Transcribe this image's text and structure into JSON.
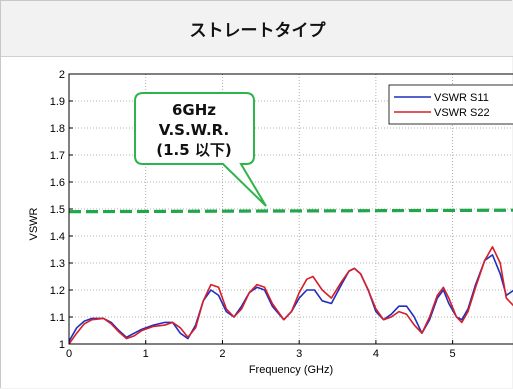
{
  "header": {
    "title": "ストレートタイプ"
  },
  "callout": {
    "lines": [
      "6GHz",
      "V.S.W.R.",
      "(1.5 以下)"
    ]
  },
  "colors": {
    "s11": "#1f2fbf",
    "s22": "#d81e28",
    "limit": "#1fa84a",
    "callout_border": "#2fb34a"
  },
  "chart_data": {
    "type": "line",
    "xlabel": "Frequency (GHz)",
    "ylabel": "VSWR",
    "xlim": [
      0,
      5.8
    ],
    "ylim": [
      1,
      2
    ],
    "x_ticks": [
      0,
      1,
      2,
      3,
      4,
      5
    ],
    "y_ticks": [
      1,
      1.1,
      1.2,
      1.3,
      1.4,
      1.5,
      1.6,
      1.7,
      1.8,
      1.9,
      2
    ],
    "grid": true,
    "legend_position": "top-right",
    "reference_line": {
      "y": 1.49,
      "style": "dashed"
    },
    "series": [
      {
        "name": "VSWR S11",
        "points": [
          [
            0,
            1.01
          ],
          [
            0.1,
            1.06
          ],
          [
            0.2,
            1.085
          ],
          [
            0.3,
            1.095
          ],
          [
            0.45,
            1.095
          ],
          [
            0.55,
            1.08
          ],
          [
            0.65,
            1.05
          ],
          [
            0.75,
            1.025
          ],
          [
            0.85,
            1.04
          ],
          [
            0.95,
            1.055
          ],
          [
            1.1,
            1.07
          ],
          [
            1.25,
            1.08
          ],
          [
            1.35,
            1.08
          ],
          [
            1.45,
            1.04
          ],
          [
            1.55,
            1.02
          ],
          [
            1.65,
            1.07
          ],
          [
            1.75,
            1.16
          ],
          [
            1.85,
            1.2
          ],
          [
            1.95,
            1.18
          ],
          [
            2.05,
            1.12
          ],
          [
            2.15,
            1.1
          ],
          [
            2.25,
            1.14
          ],
          [
            2.35,
            1.19
          ],
          [
            2.45,
            1.21
          ],
          [
            2.55,
            1.2
          ],
          [
            2.65,
            1.14
          ],
          [
            2.8,
            1.09
          ],
          [
            2.9,
            1.12
          ],
          [
            3.0,
            1.17
          ],
          [
            3.1,
            1.2
          ],
          [
            3.2,
            1.2
          ],
          [
            3.3,
            1.16
          ],
          [
            3.42,
            1.15
          ],
          [
            3.55,
            1.22
          ],
          [
            3.65,
            1.27
          ],
          [
            3.72,
            1.28
          ],
          [
            3.8,
            1.26
          ],
          [
            3.9,
            1.2
          ],
          [
            4.0,
            1.12
          ],
          [
            4.1,
            1.09
          ],
          [
            4.2,
            1.11
          ],
          [
            4.3,
            1.14
          ],
          [
            4.4,
            1.14
          ],
          [
            4.5,
            1.1
          ],
          [
            4.6,
            1.04
          ],
          [
            4.7,
            1.09
          ],
          [
            4.8,
            1.17
          ],
          [
            4.88,
            1.2
          ],
          [
            4.95,
            1.15
          ],
          [
            5.05,
            1.1
          ],
          [
            5.12,
            1.09
          ],
          [
            5.2,
            1.13
          ],
          [
            5.3,
            1.22
          ],
          [
            5.42,
            1.31
          ],
          [
            5.52,
            1.33
          ],
          [
            5.62,
            1.26
          ],
          [
            5.7,
            1.18
          ],
          [
            5.8,
            1.2
          ]
        ]
      },
      {
        "name": "VSWR S22",
        "points": [
          [
            0,
            1.0
          ],
          [
            0.1,
            1.04
          ],
          [
            0.2,
            1.075
          ],
          [
            0.3,
            1.09
          ],
          [
            0.45,
            1.095
          ],
          [
            0.55,
            1.075
          ],
          [
            0.65,
            1.045
          ],
          [
            0.75,
            1.02
          ],
          [
            0.85,
            1.03
          ],
          [
            0.95,
            1.05
          ],
          [
            1.1,
            1.065
          ],
          [
            1.25,
            1.07
          ],
          [
            1.35,
            1.08
          ],
          [
            1.45,
            1.06
          ],
          [
            1.55,
            1.025
          ],
          [
            1.65,
            1.06
          ],
          [
            1.75,
            1.16
          ],
          [
            1.85,
            1.22
          ],
          [
            1.95,
            1.21
          ],
          [
            2.05,
            1.13
          ],
          [
            2.15,
            1.1
          ],
          [
            2.25,
            1.13
          ],
          [
            2.35,
            1.19
          ],
          [
            2.45,
            1.22
          ],
          [
            2.55,
            1.21
          ],
          [
            2.65,
            1.15
          ],
          [
            2.8,
            1.09
          ],
          [
            2.9,
            1.12
          ],
          [
            3.0,
            1.19
          ],
          [
            3.1,
            1.24
          ],
          [
            3.18,
            1.25
          ],
          [
            3.3,
            1.2
          ],
          [
            3.42,
            1.17
          ],
          [
            3.55,
            1.23
          ],
          [
            3.65,
            1.27
          ],
          [
            3.72,
            1.28
          ],
          [
            3.8,
            1.26
          ],
          [
            3.9,
            1.2
          ],
          [
            4.0,
            1.13
          ],
          [
            4.1,
            1.09
          ],
          [
            4.2,
            1.1
          ],
          [
            4.3,
            1.12
          ],
          [
            4.4,
            1.11
          ],
          [
            4.5,
            1.07
          ],
          [
            4.6,
            1.04
          ],
          [
            4.7,
            1.1
          ],
          [
            4.8,
            1.18
          ],
          [
            4.88,
            1.21
          ],
          [
            4.95,
            1.17
          ],
          [
            5.05,
            1.1
          ],
          [
            5.12,
            1.08
          ],
          [
            5.2,
            1.12
          ],
          [
            5.3,
            1.21
          ],
          [
            5.42,
            1.31
          ],
          [
            5.52,
            1.36
          ],
          [
            5.62,
            1.3
          ],
          [
            5.7,
            1.17
          ],
          [
            5.8,
            1.14
          ]
        ]
      }
    ]
  }
}
